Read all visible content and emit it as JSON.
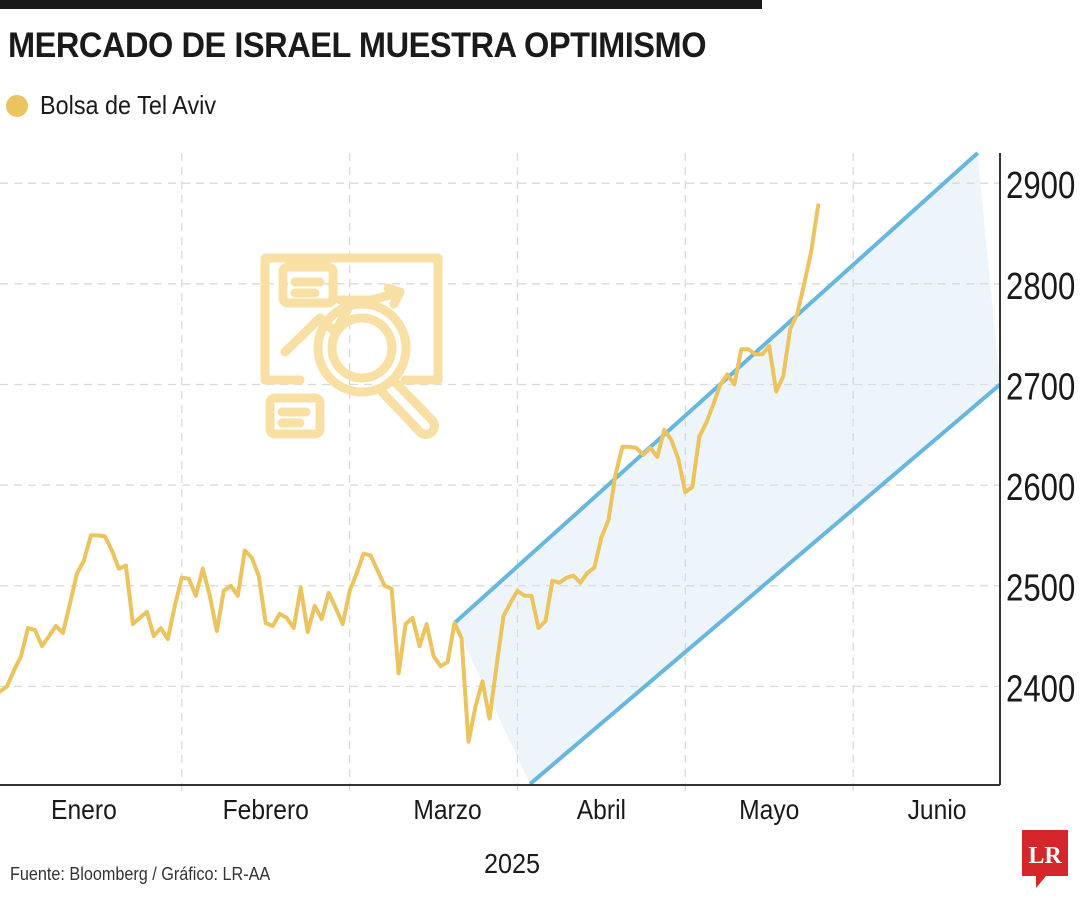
{
  "header": {
    "title": "MERCADO DE ISRAEL MUESTRA OPTIMISMO",
    "legend_label": "Bolsa de Tel Aviv"
  },
  "colors": {
    "series": "#ebc35f",
    "channel_line": "#66b6e0",
    "channel_fill": "#eef5fa",
    "icon": "#f8dfa4",
    "grid": "#d9d9d9",
    "axis": "#333333",
    "logo": "#d4262b"
  },
  "footer": {
    "source": "Fuente: Bloomberg / Gráfico: LR-AA",
    "year": "2025",
    "logo_text": "LR"
  },
  "chart_data": {
    "type": "line",
    "title": "MERCADO DE ISRAEL MUESTRA OPTIMISMO",
    "xlabel": "2025",
    "ylabel": "",
    "ylim": [
      2300,
      2930
    ],
    "x_range": [
      0,
      143
    ],
    "yticks": [
      2400,
      2500,
      2600,
      2700,
      2800,
      2900
    ],
    "x_tick_labels": [
      {
        "label": "Enero",
        "x": 12
      },
      {
        "label": "Febrero",
        "x": 38
      },
      {
        "label": "Marzo",
        "x": 64
      },
      {
        "label": "Abril",
        "x": 86
      },
      {
        "label": "Mayo",
        "x": 110
      },
      {
        "label": "Junio",
        "x": 134
      }
    ],
    "x_gridlines": [
      26,
      50,
      74,
      98,
      122
    ],
    "series": [
      {
        "name": "Bolsa de Tel Aviv",
        "points": [
          [
            0,
            2395
          ],
          [
            1,
            2400
          ],
          [
            2,
            2416
          ],
          [
            3,
            2430
          ],
          [
            4,
            2458
          ],
          [
            5,
            2456
          ],
          [
            6,
            2440
          ],
          [
            7,
            2450
          ],
          [
            8,
            2460
          ],
          [
            9,
            2453
          ],
          [
            10,
            2482
          ],
          [
            11,
            2512
          ],
          [
            12,
            2525
          ],
          [
            13,
            2550
          ],
          [
            14,
            2550
          ],
          [
            15,
            2549
          ],
          [
            16,
            2535
          ],
          [
            17,
            2517
          ],
          [
            18,
            2520
          ],
          [
            19,
            2462
          ],
          [
            20,
            2468
          ],
          [
            21,
            2474
          ],
          [
            22,
            2450
          ],
          [
            23,
            2458
          ],
          [
            24,
            2447
          ],
          [
            25,
            2480
          ],
          [
            26,
            2508
          ],
          [
            27,
            2507
          ],
          [
            28,
            2490
          ],
          [
            29,
            2517
          ],
          [
            30,
            2490
          ],
          [
            31,
            2455
          ],
          [
            32,
            2495
          ],
          [
            33,
            2500
          ],
          [
            34,
            2490
          ],
          [
            35,
            2535
          ],
          [
            36,
            2528
          ],
          [
            37,
            2510
          ],
          [
            38,
            2463
          ],
          [
            39,
            2460
          ],
          [
            40,
            2472
          ],
          [
            41,
            2468
          ],
          [
            42,
            2458
          ],
          [
            43,
            2498
          ],
          [
            44,
            2454
          ],
          [
            45,
            2480
          ],
          [
            46,
            2467
          ],
          [
            47,
            2493
          ],
          [
            48,
            2478
          ],
          [
            49,
            2462
          ],
          [
            50,
            2495
          ],
          [
            51,
            2512
          ],
          [
            52,
            2532
          ],
          [
            53,
            2530
          ],
          [
            54,
            2515
          ],
          [
            55,
            2500
          ],
          [
            56,
            2497
          ],
          [
            57,
            2413
          ],
          [
            58,
            2462
          ],
          [
            59,
            2468
          ],
          [
            60,
            2440
          ],
          [
            61,
            2462
          ],
          [
            62,
            2430
          ],
          [
            63,
            2420
          ],
          [
            64,
            2424
          ],
          [
            65,
            2463
          ],
          [
            66,
            2448
          ],
          [
            67,
            2345
          ],
          [
            68,
            2380
          ],
          [
            69,
            2405
          ],
          [
            70,
            2368
          ],
          [
            71,
            2420
          ],
          [
            72,
            2470
          ],
          [
            73,
            2483
          ],
          [
            74,
            2495
          ],
          [
            75,
            2490
          ],
          [
            76,
            2490
          ],
          [
            77,
            2458
          ],
          [
            78,
            2465
          ],
          [
            79,
            2505
          ],
          [
            80,
            2503
          ],
          [
            81,
            2508
          ],
          [
            82,
            2510
          ],
          [
            83,
            2503
          ],
          [
            84,
            2513
          ],
          [
            85,
            2518
          ],
          [
            86,
            2548
          ],
          [
            87,
            2565
          ],
          [
            88,
            2610
          ],
          [
            89,
            2638
          ],
          [
            90,
            2638
          ],
          [
            91,
            2637
          ],
          [
            92,
            2630
          ],
          [
            93,
            2637
          ],
          [
            94,
            2628
          ],
          [
            95,
            2655
          ],
          [
            96,
            2645
          ],
          [
            97,
            2626
          ],
          [
            98,
            2593
          ],
          [
            99,
            2598
          ],
          [
            100,
            2648
          ],
          [
            101,
            2662
          ],
          [
            102,
            2680
          ],
          [
            103,
            2700
          ],
          [
            104,
            2710
          ],
          [
            105,
            2700
          ],
          [
            106,
            2735
          ],
          [
            107,
            2735
          ],
          [
            108,
            2730
          ],
          [
            109,
            2730
          ],
          [
            110,
            2738
          ],
          [
            111,
            2693
          ],
          [
            112,
            2708
          ],
          [
            113,
            2755
          ],
          [
            114,
            2770
          ],
          [
            115,
            2800
          ],
          [
            116,
            2832
          ],
          [
            117,
            2878
          ]
        ]
      }
    ],
    "trend_channel": {
      "upper": {
        "start": [
          65,
          2463
        ],
        "end": [
          139.8,
          2930
        ]
      },
      "lower": {
        "start": [
          75.8,
          2303
        ],
        "end": [
          143,
          2700
        ]
      }
    }
  }
}
